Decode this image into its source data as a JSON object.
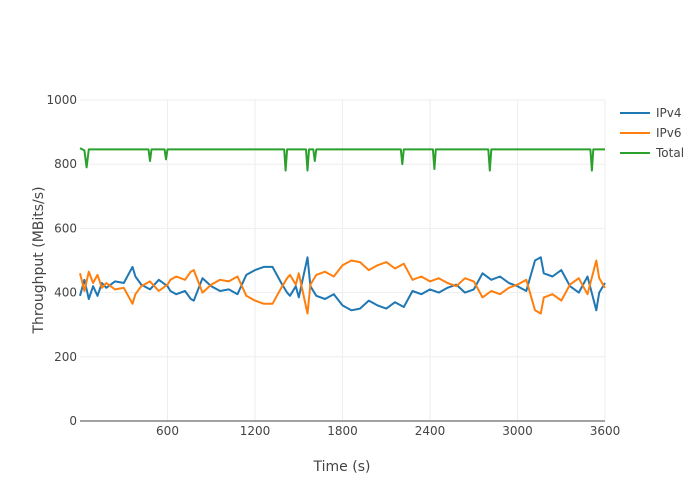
{
  "chart_data": {
    "type": "line",
    "xlabel": "Time (s)",
    "ylabel": "Throughput (MBits/s)",
    "xlim": [
      0,
      3600
    ],
    "ylim": [
      0,
      1000
    ],
    "x_ticks": [
      600,
      1200,
      1800,
      2400,
      3000,
      3600
    ],
    "y_ticks": [
      0,
      200,
      400,
      600,
      800,
      1000
    ],
    "grid": true,
    "legend_position": "top-right",
    "series": [
      {
        "name": "IPv4",
        "color": "#1f77b4",
        "x": [
          0,
          30,
          60,
          90,
          120,
          150,
          180,
          240,
          300,
          360,
          380,
          420,
          480,
          540,
          600,
          620,
          660,
          720,
          760,
          780,
          840,
          900,
          960,
          1020,
          1080,
          1140,
          1200,
          1260,
          1320,
          1380,
          1420,
          1440,
          1480,
          1500,
          1560,
          1580,
          1620,
          1680,
          1740,
          1800,
          1860,
          1920,
          1980,
          2040,
          2100,
          2160,
          2220,
          2280,
          2340,
          2400,
          2460,
          2520,
          2580,
          2640,
          2700,
          2760,
          2820,
          2880,
          2940,
          3000,
          3060,
          3120,
          3160,
          3180,
          3240,
          3300,
          3360,
          3420,
          3480,
          3540,
          3560,
          3600
        ],
        "values": [
          390,
          440,
          380,
          420,
          390,
          430,
          415,
          435,
          430,
          480,
          450,
          425,
          410,
          440,
          420,
          405,
          395,
          405,
          380,
          375,
          445,
          420,
          405,
          410,
          395,
          455,
          470,
          480,
          480,
          430,
          400,
          390,
          420,
          385,
          510,
          420,
          390,
          380,
          395,
          360,
          345,
          350,
          375,
          360,
          350,
          370,
          355,
          405,
          395,
          410,
          400,
          415,
          425,
          400,
          410,
          460,
          440,
          450,
          430,
          420,
          405,
          500,
          510,
          460,
          450,
          470,
          420,
          400,
          450,
          345,
          400,
          430
        ]
      },
      {
        "name": "IPv6",
        "color": "#ff7f0e",
        "x": [
          0,
          30,
          60,
          90,
          120,
          150,
          180,
          240,
          300,
          360,
          380,
          420,
          480,
          540,
          600,
          620,
          660,
          720,
          760,
          780,
          840,
          900,
          960,
          1020,
          1080,
          1140,
          1200,
          1260,
          1320,
          1380,
          1420,
          1440,
          1480,
          1500,
          1560,
          1580,
          1620,
          1680,
          1740,
          1800,
          1860,
          1920,
          1980,
          2040,
          2100,
          2160,
          2220,
          2280,
          2340,
          2400,
          2460,
          2520,
          2580,
          2640,
          2700,
          2760,
          2820,
          2880,
          2940,
          3000,
          3060,
          3120,
          3160,
          3180,
          3240,
          3300,
          3360,
          3420,
          3480,
          3540,
          3560,
          3600
        ],
        "values": [
          460,
          405,
          465,
          430,
          455,
          415,
          430,
          410,
          415,
          365,
          395,
          420,
          435,
          405,
          425,
          440,
          450,
          440,
          465,
          470,
          400,
          425,
          440,
          435,
          450,
          390,
          375,
          365,
          365,
          415,
          445,
          455,
          425,
          460,
          335,
          425,
          455,
          465,
          450,
          485,
          500,
          495,
          470,
          485,
          495,
          475,
          490,
          440,
          450,
          435,
          445,
          430,
          420,
          445,
          435,
          385,
          405,
          395,
          415,
          425,
          440,
          345,
          335,
          385,
          395,
          375,
          425,
          445,
          395,
          500,
          445,
          415
        ]
      },
      {
        "name": "Total",
        "color": "#2ca02c",
        "x": [
          0,
          30,
          45,
          60,
          200,
          470,
          480,
          490,
          580,
          590,
          600,
          900,
          1400,
          1410,
          1420,
          1550,
          1560,
          1570,
          1600,
          1610,
          1620,
          2200,
          2210,
          2220,
          2420,
          2430,
          2440,
          2800,
          2810,
          2820,
          3500,
          3510,
          3520,
          3600
        ],
        "values": [
          850,
          843,
          790,
          846,
          846,
          846,
          810,
          846,
          846,
          815,
          846,
          846,
          846,
          780,
          846,
          846,
          780,
          846,
          846,
          810,
          846,
          846,
          800,
          846,
          846,
          785,
          846,
          846,
          780,
          846,
          846,
          780,
          846,
          846
        ]
      }
    ]
  }
}
